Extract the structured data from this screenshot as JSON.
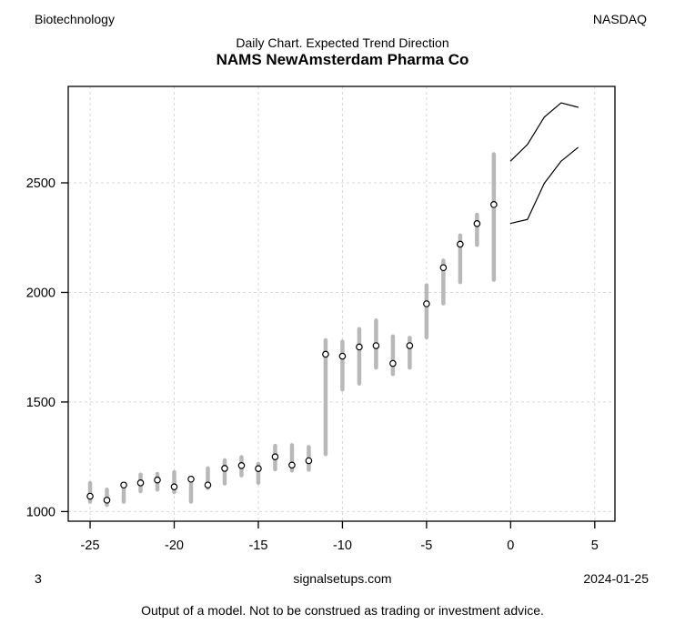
{
  "header": {
    "sector": "Biotechnology",
    "exchange": "NASDAQ",
    "subtitle": "Daily Chart. Expected Trend Direction",
    "title": "NAMS NewAmsterdam Pharma Co"
  },
  "footer": {
    "page_number": "3",
    "website": "signalsetups.com",
    "date": "2024-01-25",
    "disclaimer": "Output of a model. Not to be construed as trading or investment advice."
  },
  "chart_data": {
    "type": "scatter",
    "title": "NAMS NewAmsterdam Pharma Co",
    "subtitle": "Daily Chart. Expected Trend Direction",
    "xlabel": "",
    "ylabel": "",
    "xlim": [
      -26.3,
      6.2
    ],
    "ylim": [
      956,
      2940
    ],
    "x_ticks": [
      -25,
      -20,
      -15,
      -10,
      -5,
      0,
      5
    ],
    "y_ticks": [
      1000,
      1500,
      2000,
      2500
    ],
    "grid": true,
    "legend": "none",
    "marker": "open-circle",
    "series": [
      {
        "name": "daily-price-range",
        "type": "range-dot",
        "x": [
          -25,
          -24,
          -23,
          -22,
          -21,
          -20,
          -19,
          -18,
          -17,
          -16,
          -15,
          -14,
          -13,
          -12,
          -11,
          -10,
          -9,
          -8,
          -7,
          -6,
          -5,
          -4,
          -3,
          -2,
          -1
        ],
        "point": [
          1070,
          1052,
          1121,
          1131,
          1144,
          1113,
          1148,
          1121,
          1197,
          1210,
          1196,
          1250,
          1212,
          1232,
          1718,
          1709,
          1751,
          1757,
          1676,
          1757,
          1948,
          2113,
          2220,
          2314,
          2401
        ],
        "low": [
          1045,
          1030,
          1045,
          1093,
          1100,
          1089,
          1045,
          1107,
          1128,
          1165,
          1131,
          1193,
          1187,
          1191,
          1262,
          1557,
          1584,
          1657,
          1627,
          1657,
          1795,
          1950,
          2047,
          2217,
          2058
        ],
        "high": [
          1130,
          1100,
          1125,
          1169,
          1172,
          1180,
          1150,
          1197,
          1234,
          1248,
          1218,
          1300,
          1303,
          1295,
          1782,
          1775,
          1833,
          1872,
          1799,
          1793,
          2032,
          2145,
          2260,
          2355,
          2631
        ]
      },
      {
        "name": "forecast-upper",
        "type": "line",
        "x": [
          0,
          1,
          2,
          3,
          4
        ],
        "values": [
          2600,
          2675,
          2800,
          2865,
          2845
        ]
      },
      {
        "name": "forecast-lower",
        "type": "line",
        "x": [
          0,
          1,
          2,
          3,
          4
        ],
        "values": [
          2315,
          2333,
          2498,
          2599,
          2661
        ]
      }
    ],
    "colors": {
      "range_bar": "#b8b8b8",
      "marker_stroke": "#000000",
      "marker_fill": "#ffffff",
      "forecast_line": "#000000",
      "grid": "#d9d9d9",
      "frame": "#000000",
      "text": "#000000"
    }
  }
}
